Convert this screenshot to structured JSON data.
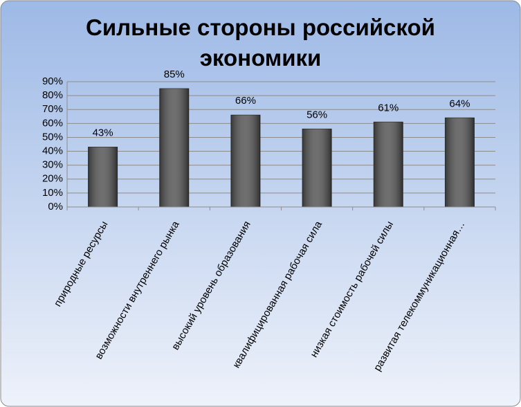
{
  "chart_data": {
    "type": "bar",
    "title": "Сильные стороны российской экономики",
    "categories": [
      "природные ресурсы",
      "возможности внутреннего рынка",
      "высокий уровень образования",
      "квалифицированная рабочая сила",
      "низкая стоимость рабочей силы",
      "развитая телекоммуникационная…"
    ],
    "values": [
      43,
      85,
      66,
      56,
      61,
      64
    ],
    "value_labels": [
      "43%",
      "85%",
      "66%",
      "56%",
      "61%",
      "64%"
    ],
    "color": "#555555",
    "ylim": [
      0,
      90
    ],
    "yticks": [
      {
        "value": 0,
        "label": "0%"
      },
      {
        "value": 10,
        "label": "10%"
      },
      {
        "value": 20,
        "label": "20%"
      },
      {
        "value": 30,
        "label": "30%"
      },
      {
        "value": 40,
        "label": "40%"
      },
      {
        "value": 50,
        "label": "50%"
      },
      {
        "value": 60,
        "label": "60%"
      },
      {
        "value": 70,
        "label": "70%"
      },
      {
        "value": 80,
        "label": "80%"
      },
      {
        "value": 90,
        "label": "90%"
      }
    ],
    "grid": true
  }
}
